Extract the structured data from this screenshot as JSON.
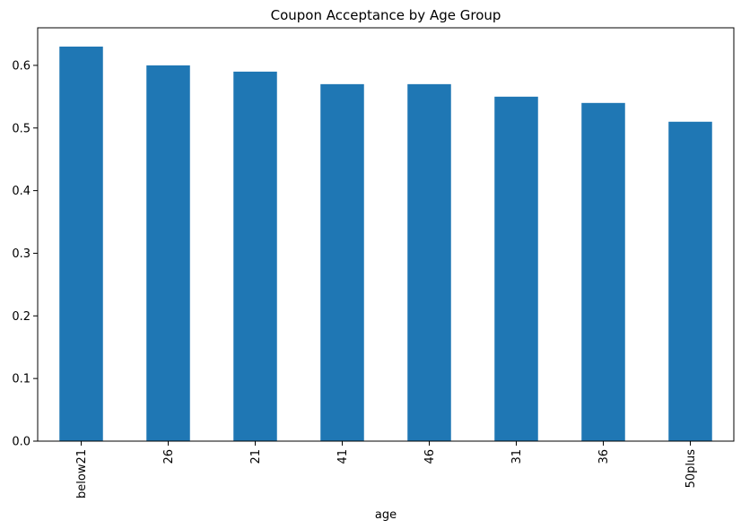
{
  "chart_data": {
    "type": "bar",
    "title": "Coupon Acceptance by Age Group",
    "xlabel": "age",
    "ylabel": "",
    "categories": [
      "below21",
      "26",
      "21",
      "41",
      "46",
      "31",
      "36",
      "50plus"
    ],
    "values": [
      0.63,
      0.6,
      0.59,
      0.57,
      0.57,
      0.55,
      0.54,
      0.51
    ],
    "ylim": [
      0,
      0.66
    ],
    "yticks": [
      "0.0",
      "0.1",
      "0.2",
      "0.3",
      "0.4",
      "0.5",
      "0.6"
    ],
    "bar_color": "#1f77b4",
    "grid": false,
    "legend": "none"
  }
}
